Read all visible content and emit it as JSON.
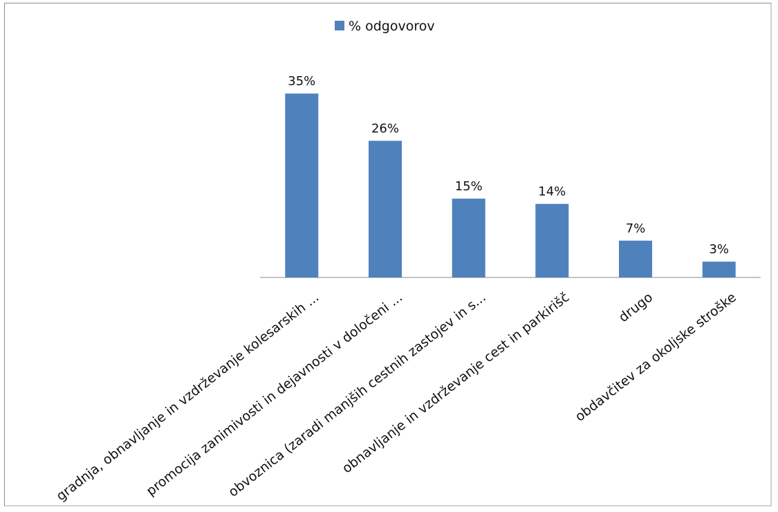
{
  "chart_data": {
    "type": "bar",
    "categories": [
      "gradnja, obnavljanje in vzdrževanje kolesarskih ...",
      "promocija zanimivosti in dejavnosti v določeni ...",
      "obvoznica (zaradi manjših cestnih zastojev in s...",
      "obnavljanje in vzdrževanje cest in parkirišč",
      "drugo",
      "obdavčitev za okoljske stroške"
    ],
    "series": [
      {
        "name": "% odgovorov",
        "values": [
          35,
          26,
          15,
          14,
          7,
          3
        ]
      }
    ],
    "data_labels": [
      "35%",
      "26%",
      "15%",
      "14%",
      "7%",
      "3%"
    ],
    "title": "",
    "xlabel": "",
    "ylabel": "",
    "ylim": [
      0,
      37
    ],
    "grid": false,
    "legend": "top",
    "colors": {
      "bar": "#4f81bd",
      "axis": "#888888"
    }
  }
}
